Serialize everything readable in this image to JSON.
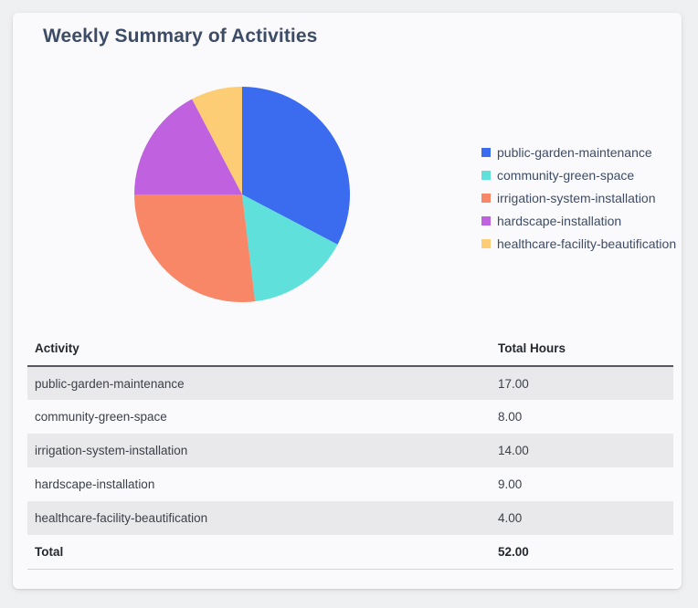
{
  "card": {
    "title": "Weekly Summary of Activities"
  },
  "chart_data": {
    "type": "pie",
    "title": "Weekly Summary of Activities",
    "categories": [
      "public-garden-maintenance",
      "community-green-space",
      "irrigation-system-installation",
      "hardscape-installation",
      "healthcare-facility-beautification"
    ],
    "values": [
      17,
      8,
      14,
      9,
      4
    ],
    "total": 52,
    "colors": [
      "#3b6cf0",
      "#5fe0da",
      "#f88768",
      "#c061e0",
      "#fccd74"
    ],
    "legend_position": "right",
    "start_angle_deg": 0,
    "direction": "clockwise"
  },
  "table": {
    "columns": [
      "Activity",
      "Total Hours"
    ],
    "rows": [
      {
        "activity": "public-garden-maintenance",
        "hours": "17.00"
      },
      {
        "activity": "community-green-space",
        "hours": "8.00"
      },
      {
        "activity": "irrigation-system-installation",
        "hours": "14.00"
      },
      {
        "activity": "hardscape-installation",
        "hours": "9.00"
      },
      {
        "activity": "healthcare-facility-beautification",
        "hours": "4.00"
      }
    ],
    "total_row": {
      "label": "Total",
      "value": "52.00"
    }
  }
}
